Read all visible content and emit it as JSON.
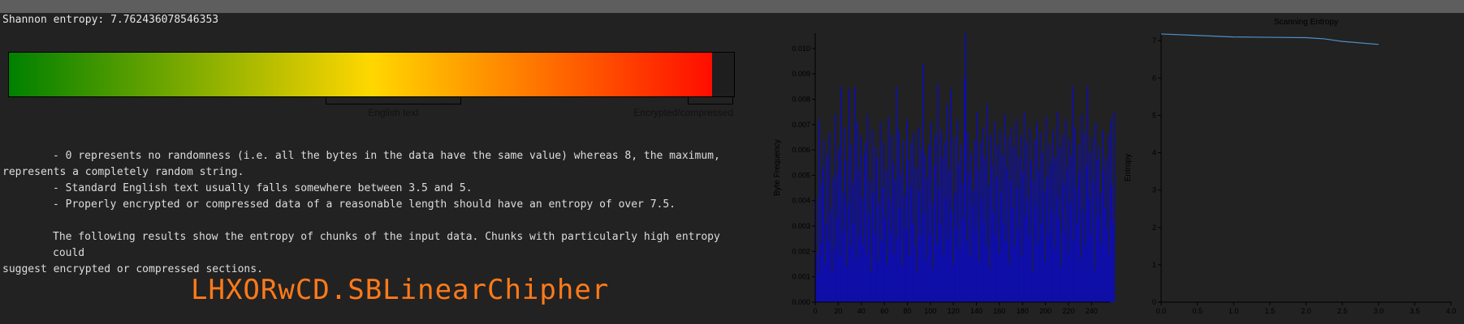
{
  "summary": {
    "entropy_label": "Shannon entropy:",
    "entropy_value": "7.762436078546353"
  },
  "gauge": {
    "max": 8,
    "value": 7.762436078546353,
    "low_color": "#008000",
    "mid_color": "#ffd700",
    "high_color": "#ff0000",
    "ranges": [
      {
        "label": "English text",
        "from": 3.5,
        "to": 5
      },
      {
        "label": "Encrypted/compressed",
        "from": 7.5,
        "to": 8
      }
    ]
  },
  "notes": {
    "line1a": "- 0 represents no randomness (i.e. all the bytes in the data have the same value) whereas 8, the maximum,",
    "line1b": "represents a completely random string.",
    "line2": "- Standard English text usually falls somewhere between 3.5 and 5.",
    "line3": "- Properly encrypted or compressed data of a reasonable length should have an entropy of over 7.5.",
    "line4a": "The following results show the entropy of chunks of the input data. Chunks with particularly high entropy could",
    "line4b": "suggest encrypted or compressed sections."
  },
  "result": {
    "name": "LHXORwCD.SBLinearChipher"
  },
  "chart_data": [
    {
      "type": "bar",
      "title": "",
      "xlabel": "",
      "ylabel": "Byte Frequency",
      "xlim": [
        0,
        256
      ],
      "ylim": [
        0,
        0.0106
      ],
      "x_ticks": [
        0,
        20,
        40,
        60,
        80,
        100,
        120,
        140,
        160,
        180,
        200,
        220,
        240
      ],
      "y_ticks": [
        0,
        0.001,
        0.002,
        0.003,
        0.004,
        0.005,
        0.006,
        0.007,
        0.008,
        0.009,
        0.01
      ],
      "color": "#0f0fa8",
      "values": [
        0.0041,
        0.0019,
        0.0011,
        0.0072,
        0.0023,
        0.0047,
        0.0053,
        0.0064,
        0.0015,
        0.0031,
        0.0058,
        0.0024,
        0.0067,
        0.0036,
        0.0012,
        0.0049,
        0.0021,
        0.0074,
        0.0033,
        0.0051,
        0.0061,
        0.0018,
        0.0085,
        0.0043,
        0.0028,
        0.0069,
        0.0056,
        0.0014,
        0.0039,
        0.0084,
        0.0022,
        0.0062,
        0.0047,
        0.0031,
        0.0085,
        0.0017,
        0.0071,
        0.0052,
        0.0026,
        0.0066,
        0.0041,
        0.0023,
        0.0058,
        0.0063,
        0.0019,
        0.0074,
        0.0035,
        0.0048,
        0.0012,
        0.0068,
        0.0043,
        0.0027,
        0.0061,
        0.0057,
        0.0016,
        0.0039,
        0.0071,
        0.0024,
        0.0045,
        0.0063,
        0.0033,
        0.0052,
        0.0015,
        0.0073,
        0.0041,
        0.0028,
        0.0066,
        0.0055,
        0.0019,
        0.0048,
        0.0085,
        0.0025,
        0.0068,
        0.0037,
        0.0051,
        0.0014,
        0.0064,
        0.0042,
        0.0029,
        0.0072,
        0.0056,
        0.0018,
        0.0046,
        0.0063,
        0.0031,
        0.0067,
        0.0022,
        0.0053,
        0.0012,
        0.0069,
        0.0044,
        0.0026,
        0.0061,
        0.0094,
        0.0035,
        0.0058,
        0.0017,
        0.0049,
        0.0062,
        0.0027,
        0.0071,
        0.0039,
        0.0013,
        0.0054,
        0.0066,
        0.0023,
        0.0086,
        0.0045,
        0.0031,
        0.0068,
        0.0057,
        0.0019,
        0.0063,
        0.0041,
        0.0078,
        0.0025,
        0.0052,
        0.0084,
        0.0036,
        0.0015,
        0.0065,
        0.0043,
        0.0029,
        0.0072,
        0.0055,
        0.0021,
        0.0062,
        0.0047,
        0.0033,
        0.0088,
        0.0106,
        0.0024,
        0.0067,
        0.0051,
        0.0018,
        0.0059,
        0.0038,
        0.0044,
        0.0064,
        0.0028,
        0.0075,
        0.0052,
        0.0016,
        0.0063,
        0.0041,
        0.0069,
        0.0032,
        0.0057,
        0.0022,
        0.0078,
        0.0046,
        0.0013,
        0.0066,
        0.0054,
        0.0036,
        0.0071,
        0.0027,
        0.0049,
        0.0062,
        0.0019,
        0.0068,
        0.0043,
        0.0058,
        0.0031,
        0.0074,
        0.0024,
        0.0053,
        0.0065,
        0.0015,
        0.0048,
        0.0069,
        0.0037,
        0.0061,
        0.0022,
        0.0072,
        0.0045,
        0.0029,
        0.0057,
        0.0066,
        0.0018,
        0.0051,
        0.0075,
        0.0034,
        0.0063,
        0.0041,
        0.0026,
        0.0069,
        0.0056,
        0.0012,
        0.0048,
        0.0064,
        0.0038,
        0.0071,
        0.0023,
        0.0052,
        0.0067,
        0.0031,
        0.0059,
        0.0044,
        0.0016,
        0.0073,
        0.0049,
        0.0027,
        0.0062,
        0.0055,
        0.0036,
        0.0068,
        0.0021,
        0.0057,
        0.0042,
        0.0075,
        0.0033,
        0.0061,
        0.0014,
        0.0066,
        0.0047,
        0.0028,
        0.0072,
        0.0053,
        0.0019,
        0.0064,
        0.0039,
        0.0058,
        0.0085,
        0.0024,
        0.0069,
        0.0045,
        0.0031,
        0.0062,
        0.0051,
        0.0017,
        0.0074,
        0.0036,
        0.0067,
        0.0022,
        0.0054,
        0.0085,
        0.0041,
        0.0059,
        0.0027,
        0.0065,
        0.0048,
        0.0013,
        0.0071,
        0.0056,
        0.0034,
        0.0061,
        0.0043,
        0.0023,
        0.0068,
        0.0052,
        0.0037,
        0.0057,
        0.0029,
        0.0066,
        0.0019,
        0.0072,
        0.0046,
        0.0032,
        0.0075
      ]
    },
    {
      "type": "line",
      "title": "Scanning Entropy",
      "xlabel": "",
      "ylabel": "Entropy",
      "xlim": [
        0,
        4
      ],
      "ylim": [
        0,
        7.2
      ],
      "x_ticks": [
        0,
        0.5,
        1,
        1.5,
        2,
        2.5,
        3,
        3.5,
        4
      ],
      "x_tick_labels": [
        "0.0",
        "0.5",
        "1.0",
        "1.5",
        "2.0",
        "2.5",
        "3.0",
        "3.5",
        "4.0"
      ],
      "y_ticks": [
        0,
        1,
        2,
        3,
        4,
        5,
        6,
        7
      ],
      "color": "#4f8fc9",
      "series": [
        {
          "x": [
            0,
            0.5,
            1,
            1.5,
            2,
            2.25,
            2.5,
            3
          ],
          "y": [
            7.18,
            7.14,
            7.1,
            7.09,
            7.08,
            7.05,
            6.98,
            6.9
          ]
        }
      ]
    }
  ]
}
